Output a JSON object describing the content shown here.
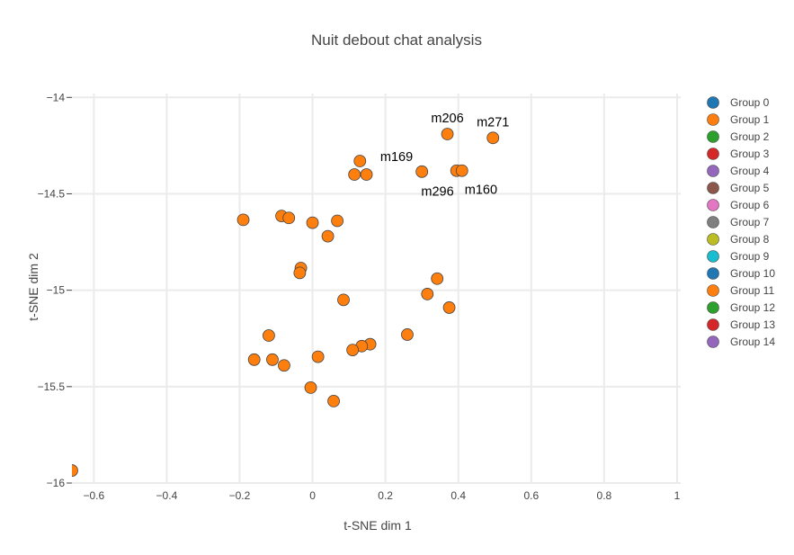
{
  "chart_data": {
    "type": "scatter",
    "title": "Nuit debout chat analysis",
    "xlabel": "t-SNE dim 1",
    "ylabel": "t-SNE dim 2",
    "xlim": [
      -0.66,
      1.01
    ],
    "ylim": [
      -16.0,
      -13.98
    ],
    "xticks": [
      -0.6,
      -0.4,
      -0.2,
      0,
      0.2,
      0.4,
      0.6,
      0.8,
      1
    ],
    "xtick_labels": [
      "−0.6",
      "−0.4",
      "−0.2",
      "0",
      "0.2",
      "0.4",
      "0.6",
      "0.8",
      "1"
    ],
    "yticks": [
      -14,
      -14.5,
      -15,
      -15.5,
      -16
    ],
    "ytick_labels": [
      "−14",
      "−14.5",
      "−15",
      "−15.5",
      "−16"
    ],
    "grid": true,
    "legend_position": "right",
    "series": [
      {
        "name": "Group 0",
        "color": "#1f77b4",
        "points": []
      },
      {
        "name": "Group 1",
        "color": "#ff7f0e",
        "points": [
          {
            "x": 0.37,
            "y": -14.19
          },
          {
            "x": 0.495,
            "y": -14.21
          },
          {
            "x": 0.13,
            "y": -14.33
          },
          {
            "x": 0.115,
            "y": -14.4
          },
          {
            "x": 0.148,
            "y": -14.4
          },
          {
            "x": 0.3,
            "y": -14.385
          },
          {
            "x": 0.395,
            "y": -14.38
          },
          {
            "x": 0.41,
            "y": -14.38
          },
          {
            "x": -0.19,
            "y": -14.635
          },
          {
            "x": -0.085,
            "y": -14.615
          },
          {
            "x": -0.065,
            "y": -14.625
          },
          {
            "x": 0.0,
            "y": -14.65
          },
          {
            "x": 0.068,
            "y": -14.64
          },
          {
            "x": 0.042,
            "y": -14.72
          },
          {
            "x": -0.032,
            "y": -14.885
          },
          {
            "x": -0.035,
            "y": -14.91
          },
          {
            "x": 0.342,
            "y": -14.94
          },
          {
            "x": 0.315,
            "y": -15.02
          },
          {
            "x": 0.085,
            "y": -15.05
          },
          {
            "x": 0.375,
            "y": -15.09
          },
          {
            "x": -0.12,
            "y": -15.235
          },
          {
            "x": 0.26,
            "y": -15.23
          },
          {
            "x": 0.158,
            "y": -15.28
          },
          {
            "x": 0.135,
            "y": -15.29
          },
          {
            "x": 0.11,
            "y": -15.31
          },
          {
            "x": 0.015,
            "y": -15.345
          },
          {
            "x": -0.16,
            "y": -15.36
          },
          {
            "x": -0.11,
            "y": -15.36
          },
          {
            "x": -0.078,
            "y": -15.39
          },
          {
            "x": -0.005,
            "y": -15.505
          },
          {
            "x": 0.058,
            "y": -15.575
          },
          {
            "x": -0.66,
            "y": -15.935
          }
        ]
      },
      {
        "name": "Group 2",
        "color": "#2ca02c",
        "points": []
      },
      {
        "name": "Group 3",
        "color": "#d62728",
        "points": []
      },
      {
        "name": "Group 4",
        "color": "#9467bd",
        "points": []
      },
      {
        "name": "Group 5",
        "color": "#8c564b",
        "points": []
      },
      {
        "name": "Group 6",
        "color": "#e377c2",
        "points": []
      },
      {
        "name": "Group 7",
        "color": "#7f7f7f",
        "points": []
      },
      {
        "name": "Group 8",
        "color": "#bcbd22",
        "points": []
      },
      {
        "name": "Group 9",
        "color": "#17becf",
        "points": []
      },
      {
        "name": "Group 10",
        "color": "#1f77b4",
        "points": []
      },
      {
        "name": "Group 11",
        "color": "#ff7f0e",
        "points": []
      },
      {
        "name": "Group 12",
        "color": "#2ca02c",
        "points": []
      },
      {
        "name": "Group 13",
        "color": "#d62728",
        "points": []
      },
      {
        "name": "Group 14",
        "color": "#9467bd",
        "points": []
      }
    ],
    "annotations": [
      {
        "text": "m206",
        "x": 0.37,
        "y": -14.19,
        "pos": "above"
      },
      {
        "text": "m271",
        "x": 0.495,
        "y": -14.21,
        "pos": "above"
      },
      {
        "text": "m169",
        "x": 0.3,
        "y": -14.385,
        "pos": "above-left"
      },
      {
        "text": "m296",
        "x": 0.395,
        "y": -14.38,
        "pos": "below-left"
      },
      {
        "text": "m160",
        "x": 0.41,
        "y": -14.38,
        "pos": "below-right"
      }
    ]
  }
}
